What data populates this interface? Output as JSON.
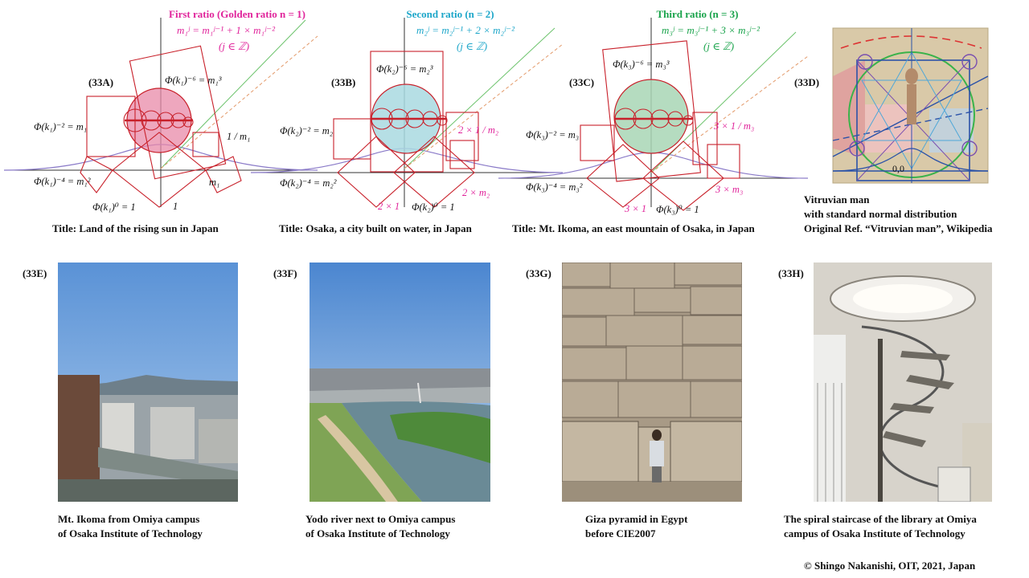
{
  "panels": {
    "a": {
      "label": "(33A)",
      "header": "First ratio (Golden ratio n = 1)",
      "formula": "m₁ʲ = m₁ʲ⁻¹ + 1 × m₁ʲ⁻²",
      "domain": "(j ∈ ℤ)",
      "labels": {
        "top": "Φ(k₁)⁻⁶ = m₁³",
        "left": "Φ(k₁)⁻² = m₁",
        "right": "1 / m₁",
        "bottom_left": "Φ(k₁)⁻⁴ = m₁²",
        "bottom_right": "m₁",
        "base": "Φ(k₁)⁰ = 1",
        "one": "1"
      },
      "title": "Title: Land of the rising sun in Japan",
      "colors": {
        "fill": "#e889a8",
        "text": "#e0249b"
      }
    },
    "b": {
      "label": "(33B)",
      "header": "Second ratio (n = 2)",
      "formula": "m₂ʲ = m₂ʲ⁻¹ + 2 × m₂ʲ⁻²",
      "domain": "(j ∈ ℤ)",
      "labels": {
        "top": "Φ(k₂)⁻⁶ = m₂³",
        "left": "Φ(k₂)⁻² = m₂",
        "right": "2 × 1 / m₂",
        "bottom_left": "Φ(k₂)⁻⁴ = m₂²",
        "bottom_right": "2 × m₂",
        "base": "Φ(k₂)⁰ = 1",
        "one": "2 × 1"
      },
      "title": "Title: Osaka, a city built on water, in Japan",
      "colors": {
        "fill": "#a9d9e0",
        "text": "#1ca6c9"
      }
    },
    "c": {
      "label": "(33C)",
      "header": "Third ratio (n = 3)",
      "formula": "m₃ʲ = m₃ʲ⁻¹ + 3 × m₃ʲ⁻²",
      "domain": "(j ∈ ℤ)",
      "labels": {
        "top": "Φ(k₃)⁻⁶ = m₃³",
        "left": "Φ(k₃)⁻² = m₃",
        "right": "3 × 1 / m₃",
        "bottom_left": "Φ(k₃)⁻⁴ = m₃²",
        "bottom_right": "3 × m₃",
        "base": "Φ(k₃)⁰ = 1",
        "one": "3 × 1"
      },
      "title": "Title: Mt. Ikoma, an east mountain of Osaka, in Japan",
      "colors": {
        "fill": "#a8d6b5",
        "text": "#19a34b"
      }
    },
    "d": {
      "label": "(33D)",
      "origin": "0,0",
      "caption_1": "Vitruvian man",
      "caption_2": "with standard normal distribution",
      "caption_3": "Original Ref. “Vitruvian man”, Wikipedia"
    }
  },
  "photos": {
    "e": {
      "label": "(33E)",
      "caption_1": "Mt. Ikoma from Omiya campus",
      "caption_2": "of Osaka Institute of Technology"
    },
    "f": {
      "label": "(33F)",
      "caption_1": "Yodo river next to Omiya campus",
      "caption_2": "of Osaka Institute of Technology"
    },
    "g": {
      "label": "(33G)",
      "caption_1": "Giza pyramid  in Egypt",
      "caption_2": "before CIE2007"
    },
    "h": {
      "label": "(33H)",
      "caption_1": "The spiral staircase of the library  at Omiya",
      "caption_2": "campus of Osaka Institute of Technology"
    }
  },
  "copyright": "© Shingo Nakanishi, OIT, 2021, Japan"
}
